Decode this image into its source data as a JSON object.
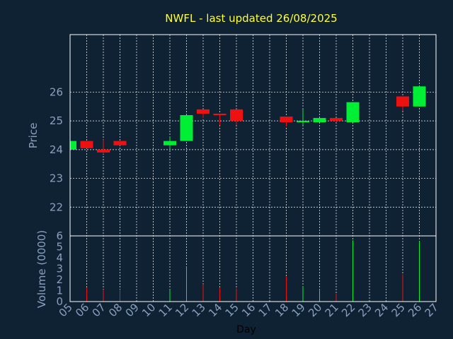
{
  "colors": {
    "background": "#0f2233",
    "frame": "#ffffff",
    "grid": "#ffffff",
    "up": "#00ee33",
    "down": "#ee1111",
    "title": "#ffff33",
    "tick": "#8aa0c0"
  },
  "chart_data": {
    "type": "candlestick",
    "title": "NWFL - last updated 26/08/2025",
    "xlabel": "Day",
    "ylabel_price": "Price",
    "ylabel_volume": "Volume (0000)",
    "x_ticks": [
      "05",
      "06",
      "07",
      "08",
      "09",
      "10",
      "11",
      "12",
      "13",
      "14",
      "15",
      "16",
      "17",
      "18",
      "19",
      "20",
      "21",
      "22",
      "23",
      "24",
      "25",
      "26",
      "27"
    ],
    "price_ticks": [
      "22",
      "23",
      "24",
      "25",
      "26"
    ],
    "volume_ticks": [
      "0",
      "1",
      "2",
      "3",
      "4",
      "5",
      "6"
    ],
    "price_range": [
      21.0,
      28.0
    ],
    "volume_range": [
      0,
      6
    ],
    "grid": true,
    "candles": [
      {
        "day": "05",
        "open": 24.0,
        "high": 24.3,
        "low": 24.0,
        "close": 24.3,
        "volume": 0.8
      },
      {
        "day": "06",
        "open": 24.3,
        "high": 24.3,
        "low": 24.05,
        "close": 24.05,
        "volume": 1.3
      },
      {
        "day": "07",
        "open": 24.0,
        "high": 24.35,
        "low": 23.85,
        "close": 23.9,
        "volume": 1.1
      },
      {
        "day": "08",
        "open": 24.3,
        "high": 24.3,
        "low": 24.15,
        "close": 24.15,
        "volume": 1.1
      },
      {
        "day": "11",
        "open": 24.15,
        "high": 24.45,
        "low": 24.0,
        "close": 24.3,
        "volume": 1.1
      },
      {
        "day": "12",
        "open": 24.3,
        "high": 25.2,
        "low": 24.3,
        "close": 25.2,
        "volume": 3.2
      },
      {
        "day": "13",
        "open": 25.4,
        "high": 25.4,
        "low": 25.1,
        "close": 25.25,
        "volume": 1.6
      },
      {
        "day": "14",
        "open": 25.25,
        "high": 25.25,
        "low": 24.85,
        "close": 25.2,
        "volume": 1.3
      },
      {
        "day": "15",
        "open": 25.4,
        "high": 25.4,
        "low": 24.85,
        "close": 25.0,
        "volume": 1.2
      },
      {
        "day": "18",
        "open": 25.15,
        "high": 25.15,
        "low": 24.8,
        "close": 24.95,
        "volume": 2.3
      },
      {
        "day": "19",
        "open": 24.95,
        "high": 25.4,
        "low": 24.85,
        "close": 25.0,
        "volume": 1.4
      },
      {
        "day": "20",
        "open": 24.95,
        "high": 25.1,
        "low": 24.95,
        "close": 25.1,
        "volume": 1.1
      },
      {
        "day": "21",
        "open": 25.1,
        "high": 25.1,
        "low": 24.95,
        "close": 25.0,
        "volume": 0.7
      },
      {
        "day": "22",
        "open": 24.95,
        "high": 25.65,
        "low": 24.95,
        "close": 25.65,
        "volume": 5.6
      },
      {
        "day": "25",
        "open": 25.85,
        "high": 25.85,
        "low": 25.35,
        "close": 25.5,
        "volume": 2.5
      },
      {
        "day": "26",
        "open": 25.5,
        "high": 26.2,
        "low": 25.5,
        "close": 26.2,
        "volume": 5.5
      }
    ]
  }
}
